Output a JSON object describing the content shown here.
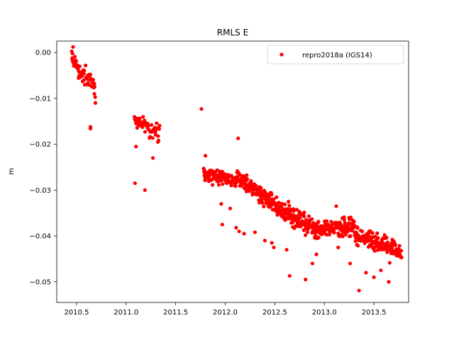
{
  "chart_data": {
    "type": "scatter",
    "title": "RMLS E",
    "xlabel": "",
    "ylabel": "m",
    "xlim": [
      2010.3,
      2013.85
    ],
    "ylim": [
      -0.0545,
      0.0025
    ],
    "x_ticks": [
      2010.5,
      2011.0,
      2011.5,
      2012.0,
      2012.5,
      2013.0,
      2013.5
    ],
    "x_tick_labels": [
      "2010.5",
      "2011.0",
      "2011.5",
      "2012.0",
      "2012.5",
      "2013.0",
      "2013.5"
    ],
    "y_ticks": [
      0.0,
      -0.01,
      -0.02,
      -0.03,
      -0.04,
      -0.05
    ],
    "y_tick_labels": [
      "0.00",
      "−0.01",
      "−0.02",
      "−0.03",
      "−0.04",
      "−0.05"
    ],
    "grid": false,
    "legend_position": "top-right",
    "marker_color": "#ff0000",
    "series": [
      {
        "name": "repro2018a (IGS14)",
        "color": "#ff0000",
        "segments": [
          {
            "x0": 2010.45,
            "x1": 2010.53,
            "y0": -0.0005,
            "y1": -0.0045,
            "spread": 0.0014,
            "count": 28
          },
          {
            "x0": 2010.53,
            "x1": 2010.69,
            "y0": -0.0035,
            "y1": -0.0075,
            "spread": 0.0016,
            "count": 34
          },
          {
            "x0": 2011.08,
            "x1": 2011.34,
            "y0": -0.015,
            "y1": -0.0175,
            "spread": 0.0016,
            "count": 48
          },
          {
            "x0": 2011.78,
            "x1": 2012.15,
            "y0": -0.0265,
            "y1": -0.028,
            "spread": 0.0013,
            "count": 120
          },
          {
            "x0": 2012.15,
            "x1": 2012.55,
            "y0": -0.028,
            "y1": -0.034,
            "spread": 0.0015,
            "count": 140
          },
          {
            "x0": 2012.55,
            "x1": 2012.95,
            "y0": -0.034,
            "y1": -0.039,
            "spread": 0.0016,
            "count": 140
          },
          {
            "x0": 2012.95,
            "x1": 2013.3,
            "y0": -0.0385,
            "y1": -0.038,
            "spread": 0.0015,
            "count": 120
          },
          {
            "x0": 2013.3,
            "x1": 2013.78,
            "y0": -0.0395,
            "y1": -0.0435,
            "spread": 0.0016,
            "count": 150
          }
        ],
        "extra_points": [
          {
            "x": 2010.64,
            "y": -0.0162
          },
          {
            "x": 2010.64,
            "y": -0.0166
          },
          {
            "x": 2010.69,
            "y": -0.011
          },
          {
            "x": 2010.68,
            "y": -0.009
          },
          {
            "x": 2011.09,
            "y": -0.0285
          },
          {
            "x": 2011.19,
            "y": -0.03
          },
          {
            "x": 2011.1,
            "y": -0.0205
          },
          {
            "x": 2011.27,
            "y": -0.023
          },
          {
            "x": 2011.32,
            "y": -0.0195
          },
          {
            "x": 2011.76,
            "y": -0.0123
          },
          {
            "x": 2011.8,
            "y": -0.0225
          },
          {
            "x": 2012.13,
            "y": -0.0187
          },
          {
            "x": 2011.97,
            "y": -0.0375
          },
          {
            "x": 2011.96,
            "y": -0.033
          },
          {
            "x": 2012.05,
            "y": -0.034
          },
          {
            "x": 2012.19,
            "y": -0.0395
          },
          {
            "x": 2012.14,
            "y": -0.039
          },
          {
            "x": 2012.47,
            "y": -0.0415
          },
          {
            "x": 2012.49,
            "y": -0.0425
          },
          {
            "x": 2012.62,
            "y": -0.043
          },
          {
            "x": 2012.65,
            "y": -0.0487
          },
          {
            "x": 2012.81,
            "y": -0.0495
          },
          {
            "x": 2012.88,
            "y": -0.046
          },
          {
            "x": 2012.92,
            "y": -0.044
          },
          {
            "x": 2013.14,
            "y": -0.0425
          },
          {
            "x": 2013.26,
            "y": -0.046
          },
          {
            "x": 2013.35,
            "y": -0.0519
          },
          {
            "x": 2013.42,
            "y": -0.048
          },
          {
            "x": 2013.5,
            "y": -0.049
          },
          {
            "x": 2013.65,
            "y": -0.05
          },
          {
            "x": 2013.57,
            "y": -0.0475
          },
          {
            "x": 2012.4,
            "y": -0.041
          },
          {
            "x": 2012.3,
            "y": -0.0392
          },
          {
            "x": 2012.11,
            "y": -0.0382
          },
          {
            "x": 2013.12,
            "y": -0.0335
          },
          {
            "x": 2013.2,
            "y": -0.0365
          }
        ]
      }
    ]
  }
}
